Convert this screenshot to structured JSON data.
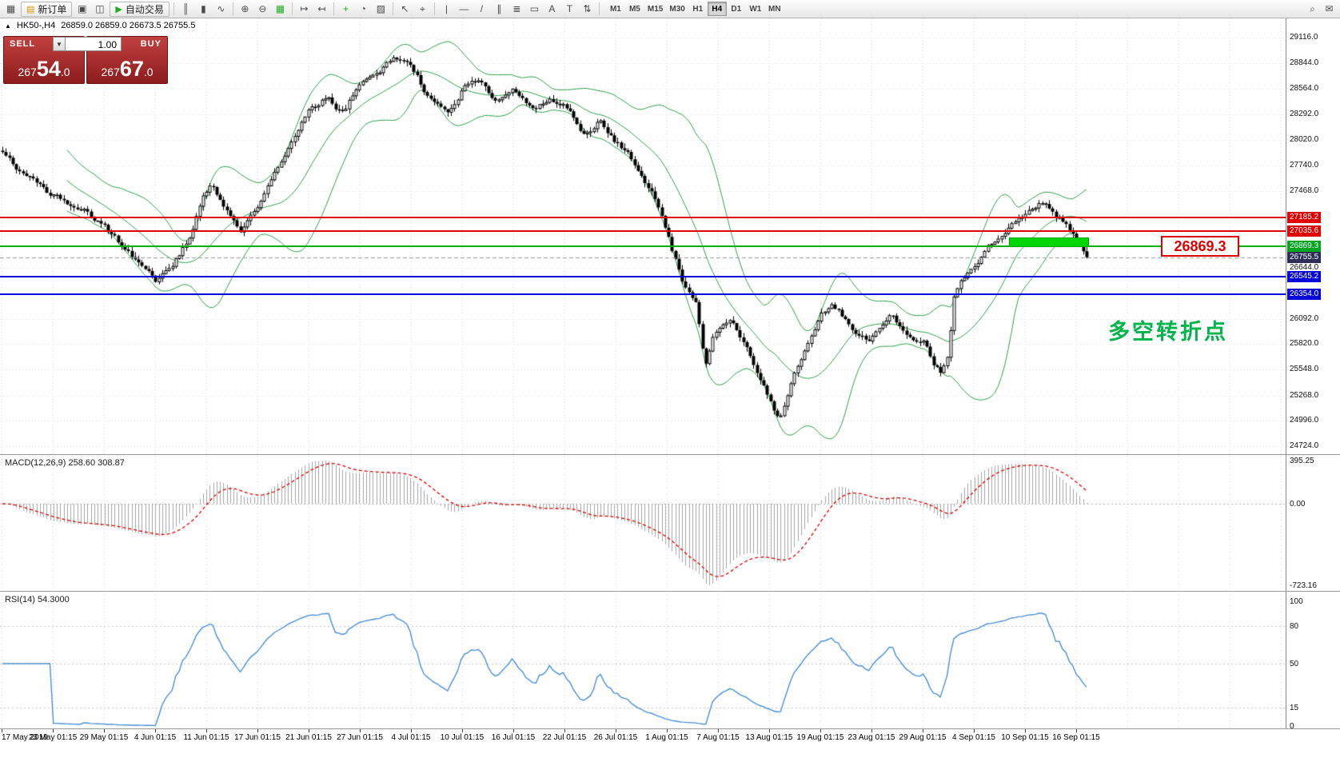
{
  "toolbar": {
    "items": [
      {
        "type": "icon",
        "name": "new-chart-icon",
        "glyph": "▦"
      },
      {
        "type": "labeled",
        "name": "new-order-button",
        "glyph": "▤",
        "glyph_color": "#d89a00",
        "label": "新订单"
      },
      {
        "type": "icon",
        "name": "chart-windows-icon",
        "glyph": "▣"
      },
      {
        "type": "icon",
        "name": "profiles-icon",
        "glyph": "◫"
      },
      {
        "type": "labeled",
        "name": "autotrading-button",
        "glyph": "▶",
        "glyph_color": "#1faa1f",
        "label": "自动交易"
      },
      {
        "type": "sep"
      },
      {
        "type": "icon",
        "name": "bar-chart-icon",
        "glyph": "║"
      },
      {
        "type": "icon",
        "name": "candlestick-chart-icon",
        "glyph": "▮"
      },
      {
        "type": "icon",
        "name": "line-chart-icon",
        "glyph": "∿"
      },
      {
        "type": "sep"
      },
      {
        "type": "icon",
        "name": "zoom-in-icon",
        "glyph": "⊕"
      },
      {
        "type": "icon",
        "name": "zoom-out-icon",
        "glyph": "⊖"
      },
      {
        "type": "icon",
        "name": "indicators-window-icon",
        "glyph": "▦",
        "glyph_color": "#1faa1f"
      },
      {
        "type": "sep"
      },
      {
        "type": "icon",
        "name": "auto-scroll-icon",
        "glyph": "↦"
      },
      {
        "type": "icon",
        "name": "chart-shift-icon",
        "glyph": "↤"
      },
      {
        "type": "sep"
      },
      {
        "type": "icon",
        "name": "add-indicator-icon",
        "glyph": "+",
        "glyph_color": "#1faa1f"
      },
      {
        "type": "icon",
        "name": "period-icon",
        "glyph": "◔"
      },
      {
        "type": "icon",
        "name": "template-icon",
        "glyph": "▨"
      },
      {
        "type": "sep"
      },
      {
        "type": "icon",
        "name": "cursor-icon",
        "glyph": "↖"
      },
      {
        "type": "icon",
        "name": "crosshair-icon",
        "glyph": "⌖"
      },
      {
        "type": "sep"
      },
      {
        "type": "icon",
        "name": "vertical-line-icon",
        "glyph": "|"
      },
      {
        "type": "icon",
        "name": "horizontal-line-icon",
        "glyph": "—"
      },
      {
        "type": "icon",
        "name": "trendline-icon",
        "glyph": "/"
      },
      {
        "type": "icon",
        "name": "channel-icon",
        "glyph": "∥"
      },
      {
        "type": "icon",
        "name": "fibonacci-icon",
        "glyph": "≣"
      },
      {
        "type": "icon",
        "name": "shapes-icon",
        "glyph": "▭"
      },
      {
        "type": "icon",
        "name": "text-icon",
        "glyph": "A"
      },
      {
        "type": "icon",
        "name": "label-icon",
        "glyph": "T"
      },
      {
        "type": "icon",
        "name": "arrows-icon",
        "glyph": "⇅"
      },
      {
        "type": "sep"
      }
    ],
    "timeframes": [
      {
        "label": "M1"
      },
      {
        "label": "M5"
      },
      {
        "label": "M15"
      },
      {
        "label": "M30"
      },
      {
        "label": "H1"
      },
      {
        "label": "H4",
        "active": true
      },
      {
        "label": "D1"
      },
      {
        "label": "W1"
      },
      {
        "label": "MN"
      }
    ],
    "right_icons": [
      {
        "name": "search-icon",
        "glyph": "⌕"
      },
      {
        "name": "chat-icon",
        "glyph": "✉"
      }
    ]
  },
  "chart_header": {
    "marker": "▲",
    "symbol": "HK50-,H4",
    "ohlc": "26859.0 26859.0 26673.5 26755.5"
  },
  "trade_panel": {
    "sell_label": "SELL",
    "buy_label": "BUY",
    "volume": "1.00",
    "volume_dd_glyph": "▼",
    "sell_price": {
      "prefix": "267",
      "big": "54",
      "suffix": ".0",
      "full": "26754.0"
    },
    "buy_price": {
      "prefix": "267",
      "big": "67",
      "suffix": ".0",
      "full": "26767.0"
    }
  },
  "annotations": {
    "level_callout": "26869.3",
    "turning_point": "多空转折点"
  },
  "indicators": {
    "macd_label": "MACD(12,26,9) 258.60 308.87",
    "rsi_label": "RSI(14) 54.3000"
  },
  "axes": {
    "price_axis": [
      {
        "text": "29116.0",
        "value": 29116.0,
        "style": "normal"
      },
      {
        "text": "28844.0",
        "value": 28844.0,
        "style": "normal"
      },
      {
        "text": "28564.0",
        "value": 28564.0,
        "style": "normal"
      },
      {
        "text": "28292.0",
        "value": 28292.0,
        "style": "normal"
      },
      {
        "text": "28020.0",
        "value": 28020.0,
        "style": "normal"
      },
      {
        "text": "27740.0",
        "value": 27740.0,
        "style": "normal"
      },
      {
        "text": "27468.0",
        "value": 27468.0,
        "style": "normal"
      },
      {
        "text": "27185.2",
        "value": 27185.2,
        "style": "red"
      },
      {
        "text": "27035.6",
        "value": 27035.6,
        "style": "red"
      },
      {
        "text": "26869.3",
        "value": 26869.3,
        "style": "green"
      },
      {
        "text": "26755.5",
        "value": 26755.5,
        "style": "current"
      },
      {
        "text": "26644.0",
        "value": 26644.0,
        "style": "normal"
      },
      {
        "text": "26545.2",
        "value": 26545.2,
        "style": "blue"
      },
      {
        "text": "26354.0",
        "value": 26354.0,
        "style": "blue"
      },
      {
        "text": "26092.0",
        "value": 26092.0,
        "style": "normal"
      },
      {
        "text": "25820.0",
        "value": 25820.0,
        "style": "normal"
      },
      {
        "text": "25548.0",
        "value": 25548.0,
        "style": "normal"
      },
      {
        "text": "25268.0",
        "value": 25268.0,
        "style": "normal"
      },
      {
        "text": "24996.0",
        "value": 24996.0,
        "style": "normal"
      },
      {
        "text": "24724.0",
        "value": 24724.0,
        "style": "normal"
      }
    ],
    "macd_axis": [
      {
        "text": "395.25",
        "value": 395.25
      },
      {
        "text": "0.00",
        "value": 0
      },
      {
        "text": "-723.16",
        "value": -723.16
      }
    ],
    "rsi_axis": [
      {
        "text": "100",
        "value": 100
      },
      {
        "text": "80",
        "value": 80
      },
      {
        "text": "50",
        "value": 50
      },
      {
        "text": "15",
        "value": 15
      },
      {
        "text": "0",
        "value": 0
      }
    ],
    "dates": [
      "17 May 2019",
      "23 May 01:15",
      "29 May 01:15",
      "4 Jun 01:15",
      "11 Jun 01:15",
      "17 Jun 01:15",
      "21 Jun 01:15",
      "27 Jun 01:15",
      "4 Jul 01:15",
      "10 Jul 01:15",
      "16 Jul 01:15",
      "22 Jul 01:15",
      "26 Jul 01:15",
      "1 Aug 01:15",
      "7 Aug 01:15",
      "13 Aug 01:15",
      "19 Aug 01:15",
      "23 Aug 01:15",
      "29 Aug 01:15",
      "4 Sep 01:15",
      "10 Sep 01:15",
      "16 Sep 01:15"
    ]
  },
  "chart_data": {
    "type": "candlestick",
    "symbol": "HK50-",
    "timeframe": "H4",
    "title": "HK50-,H4 26859.0 26859.0 26673.5 26755.5",
    "ohlc": {
      "open": 26859.0,
      "high": 26859.0,
      "low": 26673.5,
      "close": 26755.5
    },
    "current_price": 26755.5,
    "price_range": [
      24724.0,
      29116.0
    ],
    "levels": [
      {
        "value": 27185.2,
        "color": "#e00000",
        "label": "27185.2"
      },
      {
        "value": 27035.6,
        "color": "#e00000",
        "label": "27035.6"
      },
      {
        "value": 26869.3,
        "color": "#00b000",
        "label": "26869.3"
      },
      {
        "value": 26545.2,
        "color": "#0000d8",
        "label": "26545.2"
      },
      {
        "value": 26354.0,
        "color": "#0000d8",
        "label": "26354.0"
      }
    ],
    "bollinger": {
      "period": 20,
      "deviation": 2,
      "color": "#2f9e4e"
    },
    "macd": {
      "fast": 12,
      "slow": 26,
      "signal": 9,
      "main": 258.6,
      "signal_value": 308.87,
      "max": 395.25,
      "min": -723.16
    },
    "rsi": {
      "period": 14,
      "value": 54.3,
      "levels": [
        80,
        50,
        15
      ]
    },
    "waypoints": [
      [
        0.0,
        27900
      ],
      [
        0.02,
        27600
      ],
      [
        0.047,
        27400
      ],
      [
        0.075,
        27250
      ],
      [
        0.094,
        27050
      ],
      [
        0.12,
        26750
      ],
      [
        0.142,
        26500
      ],
      [
        0.155,
        26650
      ],
      [
        0.172,
        26950
      ],
      [
        0.185,
        27450
      ],
      [
        0.192,
        27580
      ],
      [
        0.205,
        27250
      ],
      [
        0.22,
        27020
      ],
      [
        0.236,
        27300
      ],
      [
        0.252,
        27620
      ],
      [
        0.268,
        28060
      ],
      [
        0.283,
        28400
      ],
      [
        0.3,
        28500
      ],
      [
        0.315,
        28300
      ],
      [
        0.33,
        28650
      ],
      [
        0.345,
        28800
      ],
      [
        0.362,
        28900
      ],
      [
        0.378,
        28750
      ],
      [
        0.395,
        28420
      ],
      [
        0.41,
        28300
      ],
      [
        0.425,
        28600
      ],
      [
        0.44,
        28700
      ],
      [
        0.455,
        28430
      ],
      [
        0.472,
        28550
      ],
      [
        0.49,
        28330
      ],
      [
        0.505,
        28480
      ],
      [
        0.519,
        28380
      ],
      [
        0.535,
        28120
      ],
      [
        0.55,
        28250
      ],
      [
        0.566,
        28020
      ],
      [
        0.582,
        27780
      ],
      [
        0.6,
        27480
      ],
      [
        0.614,
        27000
      ],
      [
        0.628,
        26450
      ],
      [
        0.64,
        26200
      ],
      [
        0.648,
        25560
      ],
      [
        0.655,
        25880
      ],
      [
        0.661,
        26000
      ],
      [
        0.672,
        26150
      ],
      [
        0.682,
        25880
      ],
      [
        0.694,
        25580
      ],
      [
        0.703,
        25380
      ],
      [
        0.71,
        25220
      ],
      [
        0.717,
        25000
      ],
      [
        0.724,
        25300
      ],
      [
        0.733,
        25600
      ],
      [
        0.742,
        25820
      ],
      [
        0.755,
        26100
      ],
      [
        0.765,
        26250
      ],
      [
        0.775,
        26120
      ],
      [
        0.787,
        25930
      ],
      [
        0.8,
        25820
      ],
      [
        0.81,
        25960
      ],
      [
        0.82,
        26080
      ],
      [
        0.83,
        25930
      ],
      [
        0.84,
        25800
      ],
      [
        0.852,
        25780
      ],
      [
        0.858,
        25600
      ],
      [
        0.865,
        25500
      ],
      [
        0.872,
        25680
      ],
      [
        0.878,
        26350
      ],
      [
        0.885,
        26560
      ],
      [
        0.897,
        26700
      ],
      [
        0.905,
        26820
      ],
      [
        0.913,
        26900
      ],
      [
        0.921,
        26980
      ],
      [
        0.93,
        27060
      ],
      [
        0.94,
        27120
      ],
      [
        0.95,
        27260
      ],
      [
        0.957,
        27340
      ],
      [
        0.964,
        27290
      ],
      [
        0.972,
        27180
      ],
      [
        0.98,
        27120
      ],
      [
        0.988,
        26990
      ],
      [
        1.0,
        26760
      ]
    ]
  }
}
